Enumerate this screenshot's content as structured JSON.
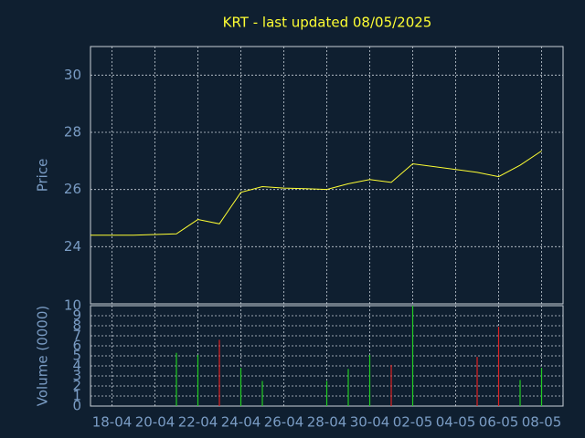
{
  "chart_data": [
    {
      "type": "line",
      "title": "KRT - last updated 08/05/2025",
      "ylabel": "Price",
      "color": "#ffff33",
      "x": [
        0,
        2,
        4,
        5,
        6,
        7,
        8,
        9,
        10,
        11,
        12,
        13,
        14,
        15,
        18,
        19,
        20,
        21
      ],
      "values": [
        24.4,
        24.4,
        24.45,
        24.95,
        24.8,
        25.9,
        26.1,
        26.05,
        26.03,
        26.0,
        26.2,
        26.35,
        26.25,
        26.9,
        26.6,
        26.45,
        26.85,
        27.35
      ],
      "xlim": [
        0,
        22
      ],
      "ylim": [
        22,
        31
      ],
      "yticks": [
        24,
        26,
        28,
        30
      ],
      "grid": true
    },
    {
      "type": "bar",
      "ylabel": "Volume (0000)",
      "x": [
        4,
        5,
        6,
        7,
        8,
        11,
        12,
        13,
        14,
        15,
        18,
        19,
        20,
        21
      ],
      "values": [
        5.3,
        5.1,
        6.6,
        3.8,
        2.5,
        2.5,
        3.7,
        5.1,
        4.1,
        10,
        4.9,
        7.9,
        2.6,
        3.8
      ],
      "colors": [
        "#22cc22",
        "#22cc22",
        "#dd2222",
        "#22cc22",
        "#22cc22",
        "#22cc22",
        "#22cc22",
        "#22cc22",
        "#dd2222",
        "#22cc22",
        "#dd2222",
        "#dd2222",
        "#22cc22",
        "#22cc22"
      ],
      "xlim": [
        0,
        22
      ],
      "ylim": [
        0,
        10
      ],
      "yticks": [
        0,
        1,
        2,
        3,
        4,
        5,
        6,
        7,
        8,
        9,
        10
      ],
      "grid": true,
      "xticks": [
        {
          "value": 1,
          "label": "18-04"
        },
        {
          "value": 3,
          "label": "20-04"
        },
        {
          "value": 5,
          "label": "22-04"
        },
        {
          "value": 7,
          "label": "24-04"
        },
        {
          "value": 9,
          "label": "26-04"
        },
        {
          "value": 11,
          "label": "28-04"
        },
        {
          "value": 13,
          "label": "30-04"
        },
        {
          "value": 15,
          "label": "02-05"
        },
        {
          "value": 17,
          "label": "04-05"
        },
        {
          "value": 19,
          "label": "06-05"
        },
        {
          "value": 21,
          "label": "08-05"
        }
      ]
    }
  ]
}
